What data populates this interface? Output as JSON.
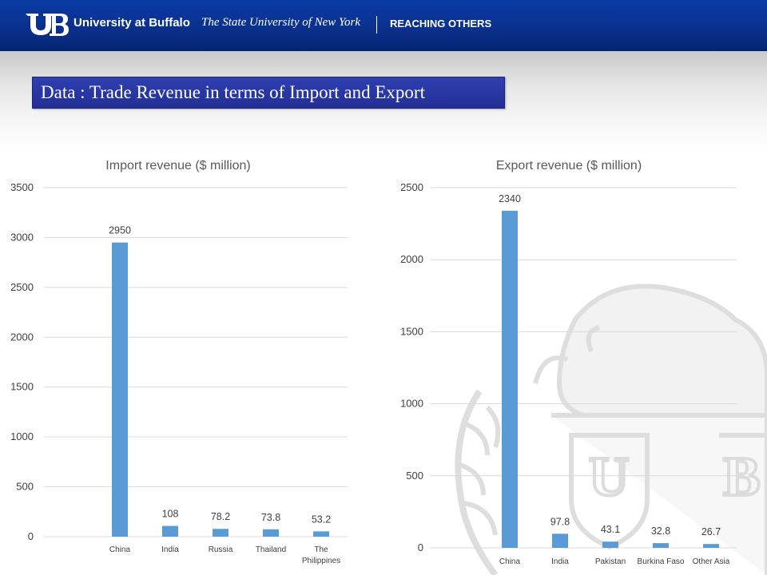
{
  "header": {
    "logo_mark": "UB",
    "university_name": "University at Buffalo",
    "university_subtitle": "The State University of New York",
    "tagline": "REACHING OTHERS",
    "colors": {
      "header_bg": "#0a2f8a",
      "text": "#ffffff"
    }
  },
  "slide": {
    "title": "Data : Trade Revenue in terms of Import and Export",
    "title_bg": "#2a37a3"
  },
  "watermark": {
    "icon": "buffalo-seal-icon"
  },
  "chart_data": [
    {
      "type": "bar",
      "title": "Import revenue ($ million)",
      "categories": [
        "China",
        "India",
        "Russia",
        "Thailand",
        "The Philippines"
      ],
      "values": [
        2950,
        108,
        78.2,
        73.8,
        53.2
      ],
      "data_labels": [
        "2950",
        "108",
        "78.2",
        "73.8",
        "53.2"
      ],
      "ylim": [
        0,
        3500
      ],
      "yticks": [
        0,
        500,
        1000,
        1500,
        2000,
        2500,
        3000,
        3500
      ],
      "grid": true,
      "bar_color": "#5b9bd5"
    },
    {
      "type": "bar",
      "title": "Export revenue ($ million)",
      "categories": [
        "China",
        "India",
        "Pakistan",
        "Burkina Faso",
        "Other Asia"
      ],
      "values": [
        2340,
        97.8,
        43.1,
        32.8,
        26.7
      ],
      "data_labels": [
        "2340",
        "97.8",
        "43.1",
        "32.8",
        "26.7"
      ],
      "ylim": [
        0,
        2500
      ],
      "yticks": [
        0,
        500,
        1000,
        1500,
        2000,
        2500
      ],
      "grid": true,
      "bar_color": "#5b9bd5"
    }
  ]
}
